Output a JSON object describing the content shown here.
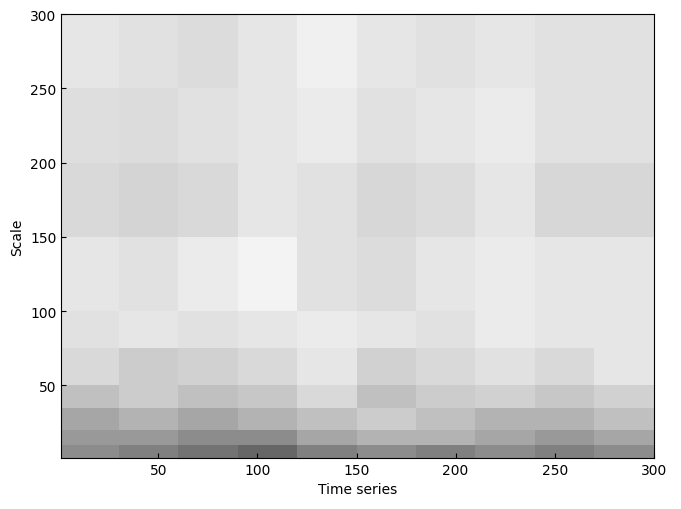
{
  "chart_data": {
    "type": "heatmap",
    "xlabel": "Time series",
    "ylabel": "Scale",
    "xlim": [
      1,
      300
    ],
    "ylim": [
      1,
      300
    ],
    "xticks": [
      50,
      100,
      150,
      200,
      250,
      300
    ],
    "yticks": [
      50,
      100,
      150,
      200,
      250,
      300
    ],
    "x_edges": [
      1,
      30,
      60,
      90,
      120,
      150,
      180,
      210,
      240,
      270,
      300
    ],
    "y_edges": [
      1,
      10,
      20,
      35,
      50,
      75,
      100,
      150,
      200,
      250,
      300
    ],
    "clim": [
      0,
      1
    ],
    "cells": [
      [
        0.55,
        0.5,
        0.45,
        0.4,
        0.5,
        0.55,
        0.5,
        0.55,
        0.5,
        0.55
      ],
      [
        0.6,
        0.6,
        0.55,
        0.55,
        0.65,
        0.7,
        0.7,
        0.65,
        0.6,
        0.65
      ],
      [
        0.65,
        0.7,
        0.65,
        0.7,
        0.75,
        0.8,
        0.75,
        0.7,
        0.7,
        0.75
      ],
      [
        0.75,
        0.8,
        0.75,
        0.78,
        0.85,
        0.75,
        0.8,
        0.82,
        0.78,
        0.82
      ],
      [
        0.85,
        0.8,
        0.82,
        0.85,
        0.9,
        0.82,
        0.85,
        0.88,
        0.85,
        0.9
      ],
      [
        0.88,
        0.9,
        0.88,
        0.9,
        0.92,
        0.9,
        0.88,
        0.92,
        0.9,
        0.9
      ],
      [
        0.9,
        0.88,
        0.92,
        0.95,
        0.88,
        0.86,
        0.9,
        0.92,
        0.9,
        0.9
      ],
      [
        0.85,
        0.83,
        0.85,
        0.9,
        0.88,
        0.84,
        0.86,
        0.9,
        0.84,
        0.84
      ],
      [
        0.87,
        0.86,
        0.88,
        0.9,
        0.92,
        0.88,
        0.9,
        0.92,
        0.88,
        0.88
      ],
      [
        0.9,
        0.88,
        0.86,
        0.9,
        0.94,
        0.9,
        0.88,
        0.9,
        0.88,
        0.88
      ]
    ]
  }
}
